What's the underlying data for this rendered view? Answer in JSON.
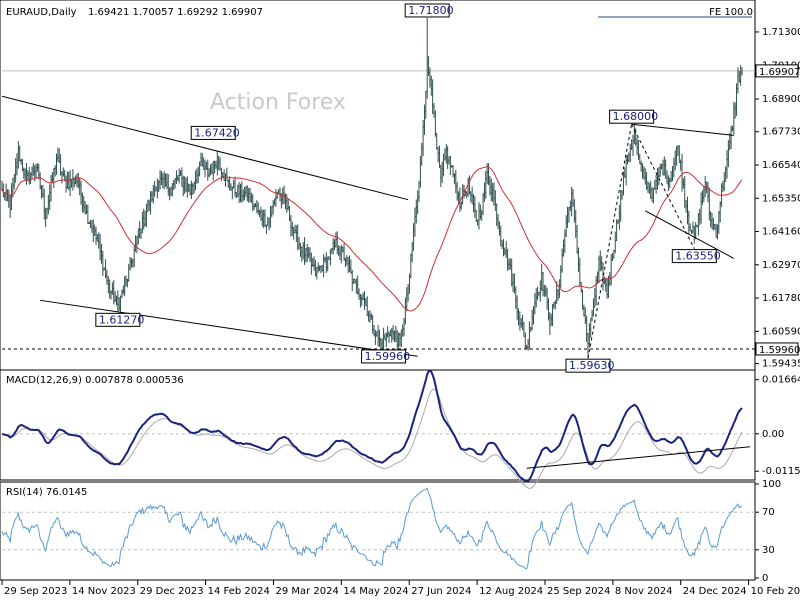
{
  "header": {
    "symbol": "EURAUD,Daily",
    "ohlc": "1.69421 1.70057 1.69292 1.69907",
    "indicator_label": "FE 100.0",
    "watermark": "Action Forex"
  },
  "colors": {
    "bar": "#2f4f4f",
    "ma": "#d32f2f",
    "macd": "#1a237e",
    "signal": "#aaaaaa",
    "rsi": "#5b9bd5",
    "trend": "#000000",
    "fe_line": "#1f4e79",
    "box_text": "#1a237e"
  },
  "chart_data": [
    {
      "type": "ohlc",
      "title": "EURAUD,Daily",
      "y_ticks": [
        "1.71300",
        "1.70100",
        "1.68900",
        "1.67730",
        "1.66540",
        "1.65350",
        "1.64160",
        "1.62970",
        "1.61780",
        "1.60590",
        "1.59435"
      ],
      "ylim": [
        1.5935,
        1.723
      ],
      "last_price": "1.69907",
      "support_level": "1.59960",
      "x_ticks": [
        "29 Sep 2023",
        "14 Nov 2023",
        "29 Dec 2023",
        "14 Feb 2024",
        "29 Mar 2024",
        "14 May 2024",
        "27 Jun 2024",
        "12 Aug 2024",
        "25 Sep 2024",
        "8 Nov 2024",
        "24 Dec 2024",
        "10 Feb 2025"
      ],
      "ma_window": 50,
      "annotations": [
        {
          "text": "1.71800",
          "index": 312,
          "value": 1.718,
          "pos": "above"
        },
        {
          "text": "1.67420",
          "index": 155,
          "value": 1.6742,
          "pos": "above"
        },
        {
          "text": "1.61270",
          "index": 85,
          "value": 1.6127,
          "pos": "below"
        },
        {
          "text": "1.59960",
          "index": 280,
          "value": 1.5996,
          "pos": "below"
        },
        {
          "text": "1.59630",
          "index": 430,
          "value": 1.5963,
          "pos": "below"
        },
        {
          "text": "1.68000",
          "index": 462,
          "value": 1.68,
          "pos": "above"
        },
        {
          "text": "1.63550",
          "index": 508,
          "value": 1.6355,
          "pos": "below"
        }
      ],
      "anchors": [
        [
          0,
          1.656
        ],
        [
          6,
          1.651
        ],
        [
          12,
          1.67
        ],
        [
          18,
          1.66
        ],
        [
          25,
          1.665
        ],
        [
          32,
          1.648
        ],
        [
          40,
          1.668
        ],
        [
          46,
          1.659
        ],
        [
          55,
          1.66
        ],
        [
          62,
          1.648
        ],
        [
          70,
          1.638
        ],
        [
          78,
          1.622
        ],
        [
          85,
          1.615
        ],
        [
          92,
          1.625
        ],
        [
          100,
          1.64
        ],
        [
          108,
          1.652
        ],
        [
          115,
          1.66
        ],
        [
          122,
          1.657
        ],
        [
          130,
          1.661
        ],
        [
          138,
          1.656
        ],
        [
          145,
          1.665
        ],
        [
          152,
          1.662
        ],
        [
          158,
          1.668
        ],
        [
          165,
          1.659
        ],
        [
          172,
          1.656
        ],
        [
          180,
          1.655
        ],
        [
          188,
          1.648
        ],
        [
          195,
          1.645
        ],
        [
          202,
          1.656
        ],
        [
          208,
          1.652
        ],
        [
          215,
          1.64
        ],
        [
          222,
          1.634
        ],
        [
          230,
          1.627
        ],
        [
          238,
          1.631
        ],
        [
          245,
          1.637
        ],
        [
          252,
          1.632
        ],
        [
          258,
          1.623
        ],
        [
          265,
          1.618
        ],
        [
          272,
          1.608
        ],
        [
          278,
          1.601
        ],
        [
          285,
          1.606
        ],
        [
          292,
          1.602
        ],
        [
          298,
          1.62
        ],
        [
          302,
          1.642
        ],
        [
          306,
          1.658
        ],
        [
          309,
          1.68
        ],
        [
          312,
          1.7
        ],
        [
          315,
          1.695
        ],
        [
          318,
          1.675
        ],
        [
          322,
          1.66
        ],
        [
          326,
          1.67
        ],
        [
          330,
          1.664
        ],
        [
          336,
          1.652
        ],
        [
          342,
          1.658
        ],
        [
          348,
          1.646
        ],
        [
          352,
          1.65
        ],
        [
          356,
          1.662
        ],
        [
          360,
          1.656
        ],
        [
          366,
          1.64
        ],
        [
          372,
          1.63
        ],
        [
          378,
          1.615
        ],
        [
          382,
          1.605
        ],
        [
          385,
          1.6
        ],
        [
          390,
          1.615
        ],
        [
          396,
          1.625
        ],
        [
          402,
          1.61
        ],
        [
          408,
          1.62
        ],
        [
          414,
          1.645
        ],
        [
          418,
          1.655
        ],
        [
          422,
          1.635
        ],
        [
          426,
          1.615
        ],
        [
          430,
          1.602
        ],
        [
          434,
          1.615
        ],
        [
          438,
          1.63
        ],
        [
          444,
          1.62
        ],
        [
          450,
          1.64
        ],
        [
          456,
          1.66
        ],
        [
          460,
          1.67
        ],
        [
          464,
          1.676
        ],
        [
          468,
          1.665
        ],
        [
          472,
          1.66
        ],
        [
          478,
          1.655
        ],
        [
          484,
          1.665
        ],
        [
          490,
          1.66
        ],
        [
          496,
          1.672
        ],
        [
          500,
          1.658
        ],
        [
          504,
          1.645
        ],
        [
          508,
          1.64
        ],
        [
          512,
          1.648
        ],
        [
          516,
          1.66
        ],
        [
          520,
          1.645
        ],
        [
          524,
          1.642
        ],
        [
          528,
          1.656
        ],
        [
          532,
          1.666
        ],
        [
          536,
          1.68
        ],
        [
          540,
          1.696
        ],
        [
          543,
          1.6991
        ]
      ]
    },
    {
      "type": "line",
      "title": "MACD(12,26,9) 0.007878 0.000536",
      "y_ticks": [
        "0.01664",
        "0.00",
        "-0.011515"
      ],
      "ylim": [
        -0.0136,
        0.019
      ],
      "last_macd": 0.007878,
      "last_signal": 0.000536
    },
    {
      "type": "line",
      "title": "RSI(14) 76.0145",
      "y_ticks": [
        "100",
        "70",
        "30",
        "0"
      ],
      "ylim": [
        0,
        100
      ],
      "levels": [
        70,
        30
      ],
      "last": 76.0145
    }
  ]
}
